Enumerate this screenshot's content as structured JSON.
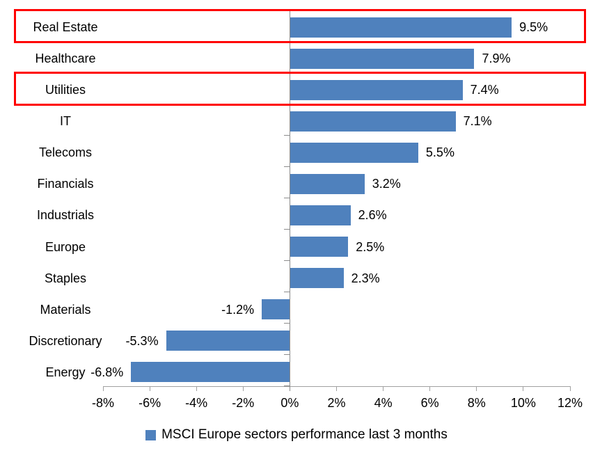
{
  "chart_data": {
    "type": "bar",
    "orientation": "horizontal",
    "legend": "MSCI Europe sectors performance last 3 months",
    "legend_position": "bottom",
    "categories": [
      "Real Estate",
      "Healthcare",
      "Utilities",
      "IT",
      "Telecoms",
      "Financials",
      "Industrials",
      "Europe",
      "Staples",
      "Materials",
      "Discretionary",
      "Energy"
    ],
    "values": [
      9.5,
      7.9,
      7.4,
      7.1,
      5.5,
      3.2,
      2.6,
      2.5,
      2.3,
      -1.2,
      -5.3,
      -6.8
    ],
    "value_labels": [
      "9.5%",
      "7.9%",
      "7.4%",
      "7.1%",
      "5.5%",
      "3.2%",
      "2.6%",
      "2.5%",
      "2.3%",
      "-1.2%",
      "-5.3%",
      "-6.8%"
    ],
    "x_axis": {
      "min": -8,
      "max": 12,
      "ticks": [
        "-8%",
        "-6%",
        "-4%",
        "-2%",
        "0%",
        "2%",
        "4%",
        "6%",
        "8%",
        "10%",
        "12%"
      ],
      "tick_values": [
        -8,
        -6,
        -4,
        -2,
        0,
        2,
        4,
        6,
        8,
        10,
        12
      ]
    },
    "grid": false,
    "highlighted_categories": [
      "Real Estate",
      "Utilities"
    ],
    "colors": {
      "bar": "#4F81BD",
      "axis": "#A0A0A0",
      "zero_line": "#8C8C8C",
      "text": "#000000",
      "highlight_box": "#FF0000"
    }
  }
}
